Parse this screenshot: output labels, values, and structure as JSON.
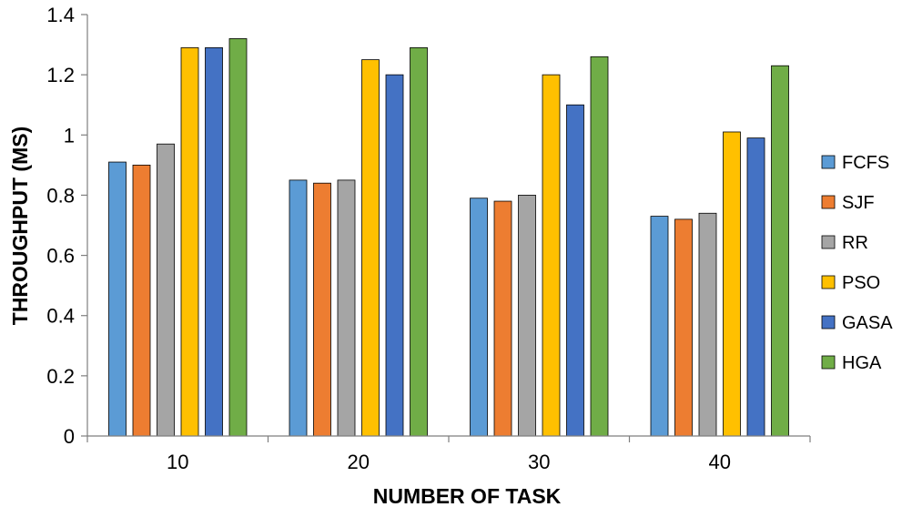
{
  "chart_data": {
    "type": "bar",
    "xlabel": "NUMBER OF TASK",
    "ylabel": "THROUGHPUT (MS)",
    "ylim": [
      0,
      1.4
    ],
    "yticks": [
      "0",
      "0.2",
      "0.4",
      "0.6",
      "0.8",
      "1",
      "1.2",
      "1.4"
    ],
    "grid": false,
    "legend_position": "right",
    "categories": [
      "10",
      "20",
      "30",
      "40"
    ],
    "series": [
      {
        "name": "FCFS",
        "color": "#5b9bd5",
        "values": [
          0.91,
          0.85,
          0.79,
          0.73
        ]
      },
      {
        "name": "SJF",
        "color": "#ed7d31",
        "values": [
          0.9,
          0.84,
          0.78,
          0.72
        ]
      },
      {
        "name": "RR",
        "color": "#a5a5a5",
        "values": [
          0.97,
          0.85,
          0.8,
          0.74
        ]
      },
      {
        "name": "PSO",
        "color": "#ffc000",
        "values": [
          1.29,
          1.25,
          1.2,
          1.01
        ]
      },
      {
        "name": "GASA",
        "color": "#4472c4",
        "values": [
          1.29,
          1.2,
          1.1,
          0.99
        ]
      },
      {
        "name": "HGA",
        "color": "#70ad47",
        "values": [
          1.32,
          1.29,
          1.26,
          1.23
        ]
      }
    ]
  }
}
